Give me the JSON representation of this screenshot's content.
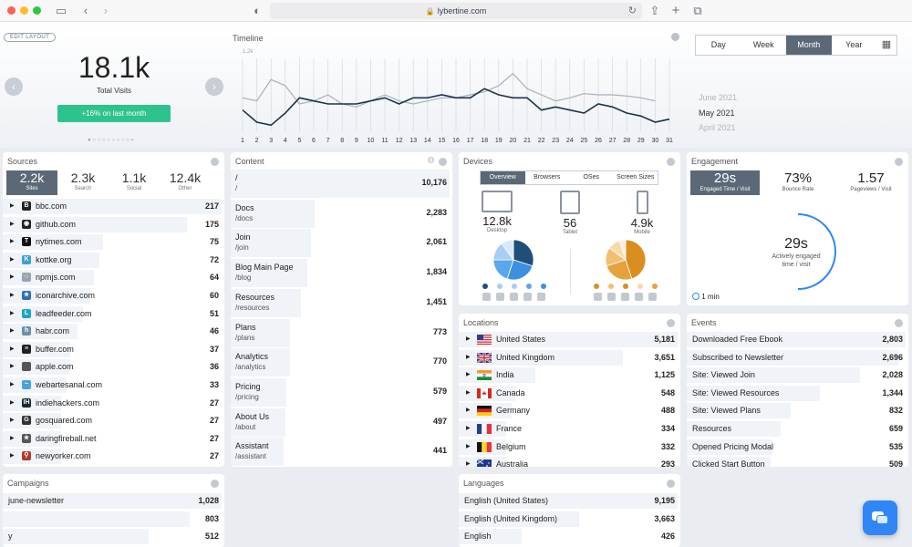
{
  "browser": {
    "url": "lybertine.com"
  },
  "top": {
    "edit_layout": "EDIT LAYOUT",
    "total_visits": "18.1k",
    "total_visits_label": "Total Visits",
    "change": "+16% on last month",
    "timeline_title": "Timeline",
    "y_max_label": "1.2k",
    "periods": [
      "Day",
      "Week",
      "Month",
      "Year"
    ],
    "selected_period": "Month",
    "months": [
      "June 2021",
      "May 2021",
      "April 2021"
    ],
    "selected_month": "May 2021"
  },
  "chart_data": {
    "type": "line",
    "x": [
      1,
      2,
      3,
      4,
      5,
      6,
      7,
      8,
      9,
      10,
      11,
      12,
      13,
      14,
      15,
      16,
      17,
      18,
      19,
      20,
      21,
      22,
      23,
      24,
      25,
      26,
      27,
      28,
      29,
      30,
      31
    ],
    "series": [
      {
        "name": "",
        "values": [
          0.55,
          0.5,
          0.85,
          0.75,
          0.45,
          0.5,
          0.6,
          0.45,
          0.4,
          0.5,
          0.6,
          0.5,
          0.45,
          0.5,
          0.55,
          0.55,
          0.6,
          0.65,
          0.75,
          0.95,
          0.7,
          0.6,
          0.5,
          0.55,
          0.62,
          0.6,
          0.6,
          0.58,
          0.55,
          0.5,
          null
        ]
      },
      {
        "name": "",
        "values": [
          0.35,
          0.15,
          0.1,
          0.3,
          0.55,
          0.5,
          0.45,
          0.45,
          0.45,
          0.5,
          0.55,
          0.45,
          0.55,
          0.55,
          0.6,
          0.55,
          0.55,
          0.7,
          0.6,
          0.55,
          0.55,
          0.35,
          0.4,
          0.35,
          0.3,
          0.45,
          0.4,
          0.3,
          0.25,
          0.15,
          0.2
        ]
      }
    ],
    "xlabel": "",
    "ylabel": "",
    "ylim": [
      0,
      1.2
    ],
    "y_units": "k"
  },
  "sources": {
    "title": "Sources",
    "tabs": [
      {
        "value": "2.2k",
        "label": "Sites"
      },
      {
        "value": "2.3k",
        "label": "Search"
      },
      {
        "value": "1.1k",
        "label": "Social"
      },
      {
        "value": "12.4k",
        "label": "Other"
      }
    ],
    "rows": [
      {
        "name": "bbc.com",
        "value": "217",
        "fav": "B",
        "color": "#222222",
        "pct": 1.0
      },
      {
        "name": "github.com",
        "value": "175",
        "fav": "◉",
        "color": "#222222",
        "pct": 0.81
      },
      {
        "name": "nytimes.com",
        "value": "75",
        "fav": "T",
        "color": "#111111",
        "pct": 0.35
      },
      {
        "name": "kottke.org",
        "value": "72",
        "fav": "K",
        "color": "#39a0d8",
        "pct": 0.33
      },
      {
        "name": "npmjs.com",
        "value": "64",
        "fav": "○",
        "color": "#9aa3ad",
        "pct": 0.3
      },
      {
        "name": "iconarchive.com",
        "value": "60",
        "fav": "★",
        "color": "#2f6fb7",
        "pct": 0.28
      },
      {
        "name": "leadfeeder.com",
        "value": "51",
        "fav": "L",
        "color": "#1aa7c8",
        "pct": 0.24
      },
      {
        "name": "habr.com",
        "value": "46",
        "fav": "h",
        "color": "#6e8fa7",
        "pct": 0.21
      },
      {
        "name": "buffer.com",
        "value": "37",
        "fav": "≡",
        "color": "#222222",
        "pct": 0.17
      },
      {
        "name": "apple.com",
        "value": "36",
        "fav": "",
        "color": "#555555",
        "pct": 0.17
      },
      {
        "name": "webartesanal.com",
        "value": "33",
        "fav": "~",
        "color": "#4aa3df",
        "pct": 0.15
      },
      {
        "name": "indiehackers.com",
        "value": "27",
        "fav": "IH",
        "color": "#1f2933",
        "pct": 0.12
      },
      {
        "name": "gosquared.com",
        "value": "27",
        "fav": "G",
        "color": "#333333",
        "pct": 0.12
      },
      {
        "name": "daringfireball.net",
        "value": "27",
        "fav": "★",
        "color": "#555555",
        "pct": 0.12
      },
      {
        "name": "newyorker.com",
        "value": "27",
        "fav": "⚲",
        "color": "#b23a2a",
        "pct": 0.12
      }
    ]
  },
  "content": {
    "title": "Content",
    "rows": [
      {
        "title": "/",
        "path": "/",
        "value": "10,176",
        "pct": 1.0
      },
      {
        "title": "Docs",
        "path": "/docs",
        "value": "2,283",
        "pct": 0.22
      },
      {
        "title": "Join",
        "path": "/join",
        "value": "2,061",
        "pct": 0.2
      },
      {
        "title": "Blog Main Page",
        "path": "/blog",
        "value": "1,834",
        "pct": 0.18
      },
      {
        "title": "Resources",
        "path": "/resources",
        "value": "1,451",
        "pct": 0.14
      },
      {
        "title": "Plans",
        "path": "/plans",
        "value": "773",
        "pct": 0.08
      },
      {
        "title": "Analytics",
        "path": "/analytics",
        "value": "770",
        "pct": 0.08
      },
      {
        "title": "Pricing",
        "path": "/pricing",
        "value": "579",
        "pct": 0.06
      },
      {
        "title": "About Us",
        "path": "/about",
        "value": "497",
        "pct": 0.05
      },
      {
        "title": "Assistant",
        "path": "/assistant",
        "value": "441",
        "pct": 0.04
      }
    ]
  },
  "devices": {
    "title": "Devices",
    "tabs": [
      "Overview",
      "Browsers",
      "OSes",
      "Screen Sizes"
    ],
    "selected_tab": "Overview",
    "items": [
      {
        "value": "12.8k",
        "label": "Desktop"
      },
      {
        "value": "56",
        "label": "Tablet"
      },
      {
        "value": "4.9k",
        "label": "Mobile"
      }
    ],
    "desktop_colors": [
      "#1e4e79",
      "#3d8fe0",
      "#5aa7ee",
      "#a9cdf3",
      "#d7e8fa"
    ],
    "mobile_colors": [
      "#d98f1f",
      "#e6a23c",
      "#f0c070",
      "#f6dba6",
      "#fbeedb"
    ]
  },
  "engagement": {
    "title": "Engagement",
    "tabs": [
      {
        "value": "29s",
        "label": "Engaged Time / Visit"
      },
      {
        "value": "73%",
        "label": "Bounce Rate"
      },
      {
        "value": "1.57",
        "label": "Pageviews / Visit"
      }
    ],
    "gauge_value": "29s",
    "gauge_label_1": "Actively engaged",
    "gauge_label_2": "time / visit",
    "legend": "1 min"
  },
  "locations": {
    "title": "Locations",
    "rows": [
      {
        "name": "United States",
        "value": "5,181",
        "flag": "us",
        "pct": 1.0
      },
      {
        "name": "United Kingdom",
        "value": "3,651",
        "flag": "uk",
        "pct": 0.7
      },
      {
        "name": "India",
        "value": "1,125",
        "flag": "in",
        "pct": 0.22
      },
      {
        "name": "Canada",
        "value": "548",
        "flag": "ca",
        "pct": 0.11
      },
      {
        "name": "Germany",
        "value": "488",
        "flag": "de",
        "pct": 0.09
      },
      {
        "name": "France",
        "value": "334",
        "flag": "fr",
        "pct": 0.06
      },
      {
        "name": "Belgium",
        "value": "332",
        "flag": "be",
        "pct": 0.06
      },
      {
        "name": "Australia",
        "value": "293",
        "flag": "au",
        "pct": 0.06
      }
    ]
  },
  "events": {
    "title": "Events",
    "rows": [
      {
        "name": "Downloaded Free Ebook",
        "value": "2,803",
        "pct": 1.0
      },
      {
        "name": "Subscribed to Newsletter",
        "value": "2,696",
        "pct": 0.96
      },
      {
        "name": "Site: Viewed Join",
        "value": "2,028",
        "pct": 0.72
      },
      {
        "name": "Site: Viewed Resources",
        "value": "1,344",
        "pct": 0.48
      },
      {
        "name": "Site: Viewed Plans",
        "value": "832",
        "pct": 0.3
      },
      {
        "name": "Resources",
        "value": "659",
        "pct": 0.24
      },
      {
        "name": "Opened Pricing Modal",
        "value": "535",
        "pct": 0.19
      },
      {
        "name": "Clicked Start Button",
        "value": "509",
        "pct": 0.18
      }
    ]
  },
  "campaigns": {
    "title": "Campaigns",
    "rows": [
      {
        "name": "june-newsletter",
        "value": "1,028",
        "pct": 1.0
      },
      {
        "name": "",
        "value": "803",
        "pct": 0.78
      },
      {
        "name": "y",
        "value": "512",
        "pct": 0.5
      }
    ]
  },
  "languages": {
    "title": "Languages",
    "rows": [
      {
        "name": "English (United States)",
        "value": "9,195",
        "pct": 1.0
      },
      {
        "name": "English (United Kingdom)",
        "value": "3,663",
        "pct": 0.4
      },
      {
        "name": "English",
        "value": "426",
        "pct": 0.05
      }
    ]
  }
}
